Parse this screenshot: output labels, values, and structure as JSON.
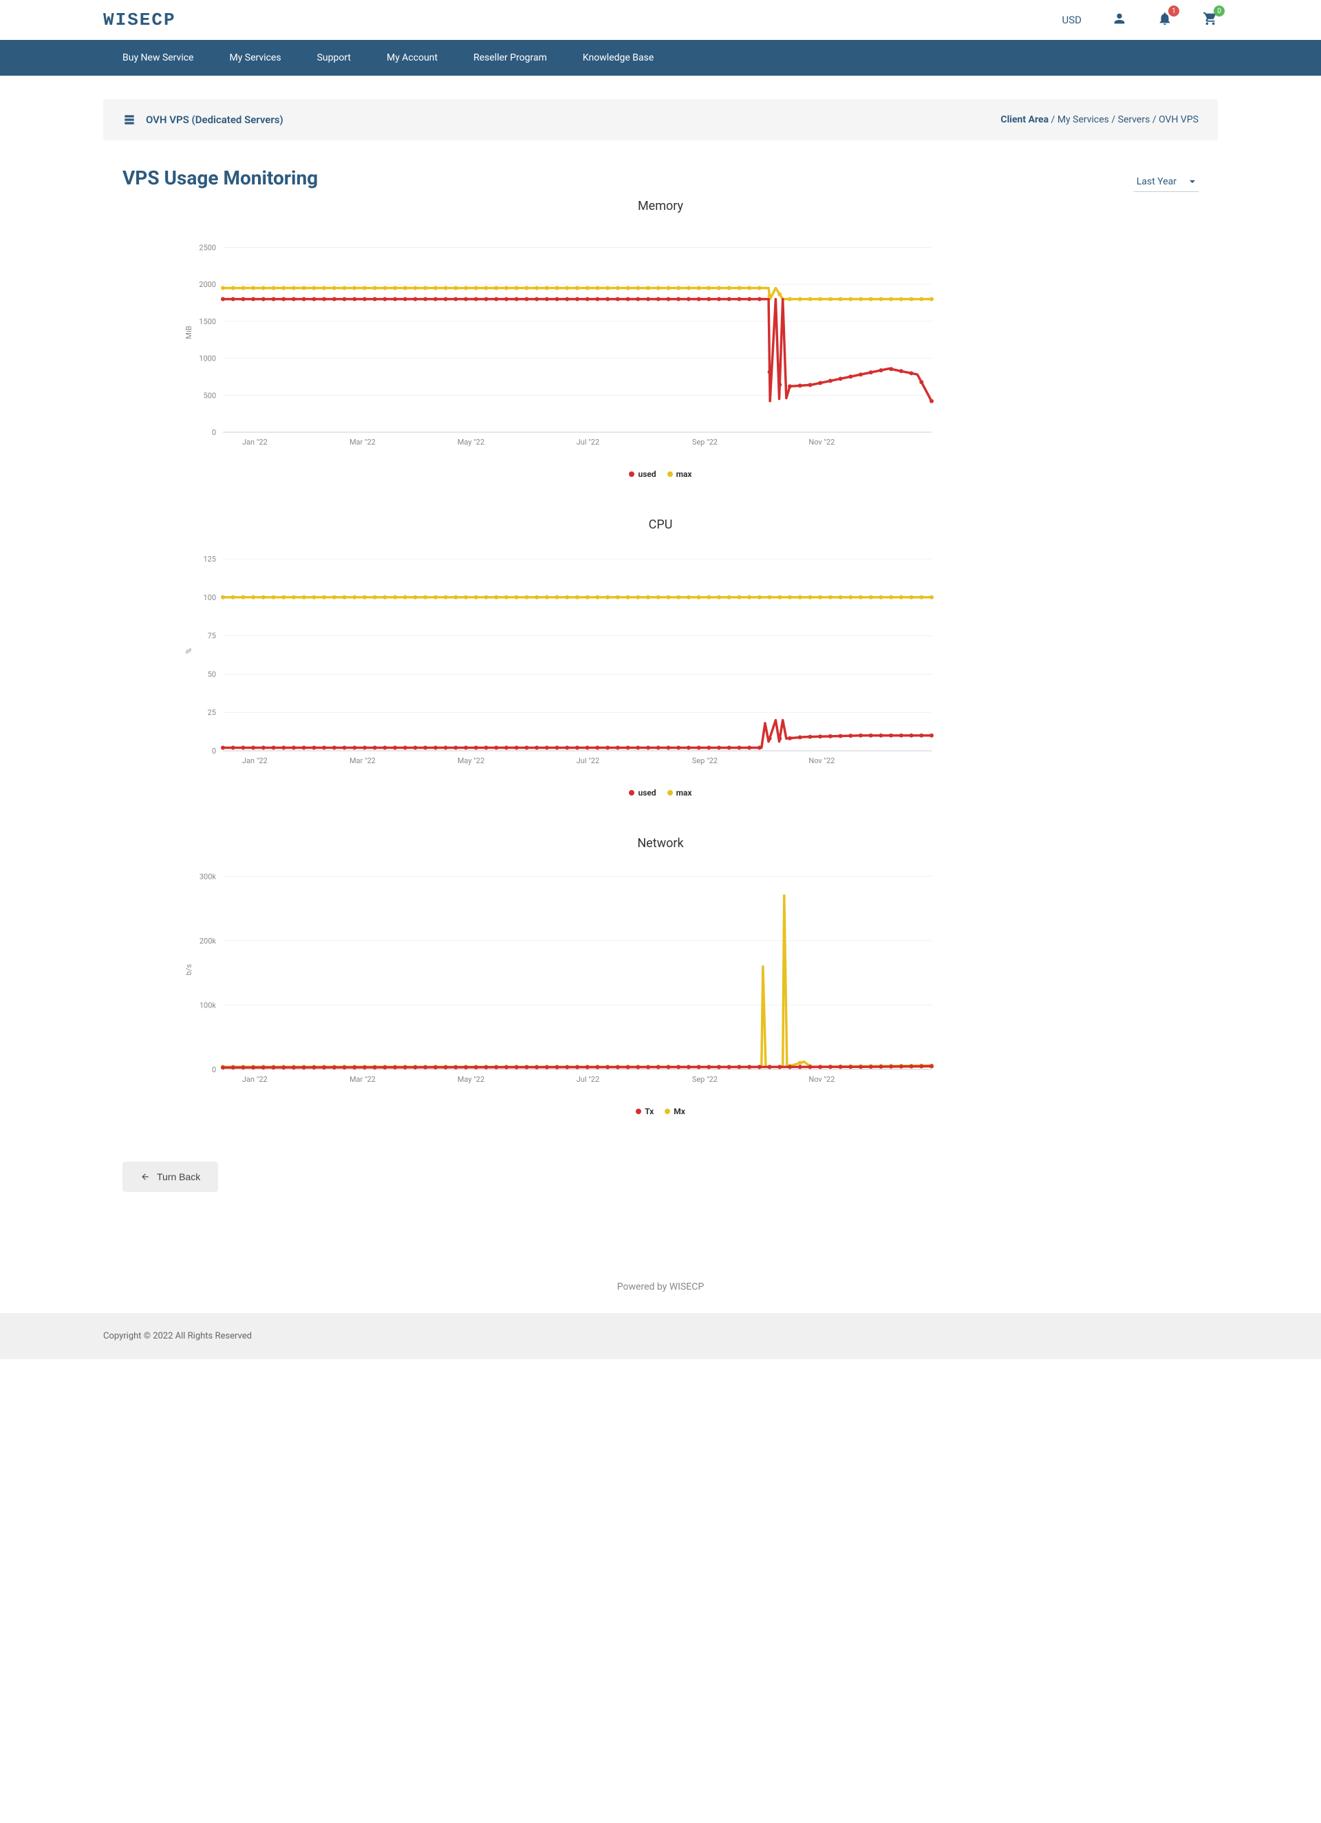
{
  "brand": "WISECP",
  "currency": "USD",
  "notification_badge": "1",
  "cart_badge": "0",
  "nav": [
    "Buy New Service",
    "My Services",
    "Support",
    "My Account",
    "Reseller Program",
    "Knowledge Base"
  ],
  "breadcrumb": {
    "title": "OVH VPS (Dedicated Servers)",
    "path": [
      "Client Area",
      "My Services",
      "Servers",
      "OVH VPS"
    ]
  },
  "page_title": "VPS Usage Monitoring",
  "range_selected": "Last Year",
  "turn_back": "Turn Back",
  "footer_powered": "Powered by WISECP",
  "footer_copy": "Copyright © 2022 All Rights Reserved",
  "colors": {
    "red": "#d32f2f",
    "yellow": "#e8c020",
    "navy": "#2e5a7e",
    "grid": "#f0f0f0",
    "axis": "#ccc",
    "tick": "#888"
  },
  "x_axis": {
    "ticks": [
      {
        "t": 0.045,
        "label": "Jan \"22"
      },
      {
        "t": 0.197,
        "label": "Mar \"22"
      },
      {
        "t": 0.35,
        "label": "May \"22"
      },
      {
        "t": 0.515,
        "label": "Jul \"22"
      },
      {
        "t": 0.68,
        "label": "Sep \"22"
      },
      {
        "t": 0.845,
        "label": "Nov \"22"
      }
    ]
  },
  "charts": [
    {
      "id": "memory",
      "title": "Memory",
      "ylabel": "MiB",
      "ymin": 0,
      "ymax": 2700,
      "yticks": [
        0,
        500,
        1000,
        1500,
        2000,
        2500
      ],
      "legend": [
        {
          "label": "used",
          "color": "#d32f2f"
        },
        {
          "label": "max",
          "color": "#e8c020"
        }
      ],
      "series": [
        {
          "color": "#e8c020",
          "points": [
            [
              0,
              1950
            ],
            [
              0.77,
              1950
            ],
            [
              0.772,
              1800
            ],
            [
              0.78,
              1950
            ],
            [
              0.79,
              1800
            ],
            [
              1,
              1800
            ]
          ]
        },
        {
          "color": "#d32f2f",
          "points": [
            [
              0,
              1800
            ],
            [
              0.77,
              1800
            ],
            [
              0.772,
              420
            ],
            [
              0.78,
              1800
            ],
            [
              0.785,
              450
            ],
            [
              0.79,
              1800
            ],
            [
              0.795,
              460
            ],
            [
              0.8,
              620
            ],
            [
              0.83,
              640
            ],
            [
              0.86,
              700
            ],
            [
              0.9,
              780
            ],
            [
              0.94,
              860
            ],
            [
              0.96,
              820
            ],
            [
              0.98,
              780
            ],
            [
              1,
              420
            ]
          ]
        }
      ]
    },
    {
      "id": "cpu",
      "title": "CPU",
      "ylabel": "%",
      "ymin": 0,
      "ymax": 130,
      "yticks": [
        0,
        25,
        50,
        75,
        100,
        125
      ],
      "legend": [
        {
          "label": "used",
          "color": "#d32f2f"
        },
        {
          "label": "max",
          "color": "#e8c020"
        }
      ],
      "series": [
        {
          "color": "#e8c020",
          "points": [
            [
              0,
              100
            ],
            [
              1,
              100
            ]
          ]
        },
        {
          "color": "#d32f2f",
          "points": [
            [
              0,
              2
            ],
            [
              0.76,
              2
            ],
            [
              0.765,
              18
            ],
            [
              0.77,
              6
            ],
            [
              0.78,
              20
            ],
            [
              0.785,
              6
            ],
            [
              0.79,
              20
            ],
            [
              0.795,
              8
            ],
            [
              0.82,
              9
            ],
            [
              0.9,
              10
            ],
            [
              1,
              10
            ]
          ]
        }
      ]
    },
    {
      "id": "network",
      "title": "Network",
      "ylabel": "b/s",
      "ymin": 0,
      "ymax": 310000,
      "yticks": [
        0,
        100000,
        200000,
        300000
      ],
      "ytick_labels": [
        "0",
        "100k",
        "200k",
        "300k"
      ],
      "legend": [
        {
          "label": "Tx",
          "color": "#d32f2f"
        },
        {
          "label": "Mx",
          "color": "#e8c020"
        }
      ],
      "series": [
        {
          "color": "#e8c020",
          "points": [
            [
              0,
              4000
            ],
            [
              0.76,
              4000
            ],
            [
              0.762,
              160000
            ],
            [
              0.766,
              4000
            ],
            [
              0.79,
              4000
            ],
            [
              0.792,
              270000
            ],
            [
              0.796,
              4000
            ],
            [
              0.82,
              12000
            ],
            [
              0.83,
              4000
            ],
            [
              1,
              6000
            ]
          ]
        },
        {
          "color": "#d32f2f",
          "points": [
            [
              0,
              3000
            ],
            [
              0.9,
              4000
            ],
            [
              1,
              5000
            ]
          ]
        }
      ]
    }
  ]
}
